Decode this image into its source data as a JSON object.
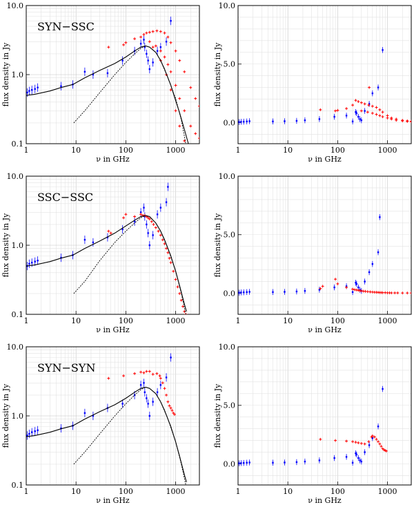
{
  "chart_data": [
    {
      "type": "scatter",
      "title": "SYN−SSC",
      "xlabel": "ν  in GHz",
      "ylabel": "flux density in Jy",
      "xscale": "log",
      "yscale": "log",
      "xlim": [
        1,
        3000
      ],
      "ylim": [
        0.1,
        10
      ],
      "xticks": [
        "1",
        "10",
        "100",
        "1000"
      ],
      "yticks": [
        "0.1",
        "1.0",
        "10.0"
      ],
      "grid": true,
      "series": [
        {
          "role": "observed",
          "color": "#0000ff",
          "x": [
            1.05,
            1.15,
            1.3,
            1.5,
            1.7,
            5,
            8.6,
            15,
            22,
            43,
            86,
            150,
            200,
            230,
            240,
            260,
            280,
            300,
            350,
            430,
            500,
            650,
            800
          ],
          "y": [
            0.55,
            0.58,
            0.6,
            0.62,
            0.65,
            0.68,
            0.72,
            1.1,
            1.0,
            1.05,
            1.6,
            2.2,
            2.8,
            3.2,
            2.5,
            2.0,
            1.6,
            1.2,
            1.5,
            2.2,
            2.5,
            3.0,
            6.0
          ]
        },
        {
          "role": "model",
          "color": "#ff0000",
          "x": [
            45,
            90,
            100,
            150,
            200,
            230,
            260,
            300,
            350,
            420,
            500,
            600,
            700,
            800,
            1000,
            1200,
            1500,
            2000,
            2500,
            3000,
            300,
            400,
            500,
            600,
            700,
            800,
            1000,
            1200,
            1500,
            2000,
            2500,
            3000,
            350,
            500,
            650,
            800,
            1000,
            1200,
            1500
          ],
          "y": [
            2.5,
            2.7,
            2.9,
            3.3,
            3.5,
            3.8,
            4.0,
            4.1,
            4.2,
            4.3,
            4.2,
            4.0,
            3.5,
            2.9,
            2.2,
            1.6,
            1.1,
            0.65,
            0.45,
            0.35,
            3.0,
            2.6,
            2.2,
            1.8,
            1.4,
            1.1,
            0.7,
            0.45,
            0.3,
            0.18,
            0.14,
            0.12,
            2.5,
            1.6,
            1.0,
            0.6,
            0.3,
            0.18,
            0.11
          ]
        },
        {
          "role": "fit-solid",
          "color": "#000000",
          "x": [
            1,
            1.5,
            3,
            5,
            8.6,
            15,
            30,
            60,
            100,
            150,
            200,
            250,
            300,
            400,
            500,
            600,
            800,
            1000,
            1200,
            1500,
            1800
          ],
          "y": [
            0.5,
            0.52,
            0.58,
            0.65,
            0.72,
            0.9,
            1.15,
            1.45,
            1.8,
            2.2,
            2.5,
            2.6,
            2.5,
            2.1,
            1.6,
            1.2,
            0.7,
            0.42,
            0.28,
            0.16,
            0.1
          ]
        },
        {
          "role": "fit-dashed",
          "color": "#000000",
          "x": [
            9,
            15,
            30,
            60,
            100,
            150,
            200,
            250,
            300,
            400,
            500,
            700,
            1000,
            1300,
            1600
          ],
          "y": [
            0.2,
            0.3,
            0.55,
            1.0,
            1.5,
            2.0,
            2.4,
            2.6,
            2.5,
            2.1,
            1.6,
            0.9,
            0.45,
            0.22,
            0.1
          ]
        }
      ]
    },
    {
      "type": "scatter",
      "title": "",
      "xlabel": "ν  in GHz",
      "ylabel": "flux density in Jy",
      "xscale": "log",
      "yscale": "linear",
      "xlim": [
        1,
        3000
      ],
      "ylim": [
        -1.8,
        10
      ],
      "xticks": [
        "1",
        "10",
        "100",
        "1000"
      ],
      "yticks": [
        "0.0",
        "5.0",
        "10.0"
      ],
      "grid": true,
      "series": [
        {
          "role": "observed",
          "color": "#0000ff",
          "x": [
            1.05,
            1.15,
            1.3,
            1.5,
            1.7,
            5,
            8.6,
            15,
            22,
            43,
            86,
            150,
            200,
            230,
            240,
            260,
            280,
            300,
            350,
            430,
            500,
            650,
            800
          ],
          "y": [
            0.05,
            0.07,
            0.08,
            0.1,
            0.12,
            0.1,
            0.12,
            0.15,
            0.2,
            0.3,
            0.5,
            0.6,
            0.1,
            0.9,
            0.8,
            0.5,
            0.3,
            0.2,
            1.0,
            1.6,
            2.5,
            3.0,
            6.2
          ]
        },
        {
          "role": "model",
          "color": "#ff0000",
          "x": [
            45,
            90,
            100,
            150,
            200,
            230,
            260,
            300,
            350,
            420,
            500,
            600,
            700,
            800,
            1000,
            1200,
            1500,
            2000,
            2500,
            3000,
            300,
            400,
            500,
            600,
            700,
            800,
            1000,
            1200,
            1500,
            2000,
            2500,
            3000,
            430
          ],
          "y": [
            1.1,
            1.0,
            1.05,
            1.2,
            1.5,
            1.9,
            1.8,
            1.7,
            1.6,
            1.5,
            1.4,
            1.3,
            1.1,
            0.9,
            0.6,
            0.4,
            0.3,
            0.2,
            0.15,
            0.12,
            1.0,
            0.9,
            0.8,
            0.7,
            0.6,
            0.5,
            0.4,
            0.3,
            0.2,
            0.15,
            0.1,
            0.08,
            3.0
          ]
        }
      ]
    },
    {
      "type": "scatter",
      "title": "SSC−SSC",
      "xlabel": "ν  in GHz",
      "ylabel": "flux density in Jy",
      "xscale": "log",
      "yscale": "log",
      "xlim": [
        1,
        3000
      ],
      "ylim": [
        0.1,
        10
      ],
      "xticks": [
        "1",
        "10",
        "100",
        "1000"
      ],
      "yticks": [
        "0.1",
        "1.0",
        "10.0"
      ],
      "grid": true,
      "series": [
        {
          "role": "observed",
          "color": "#0000ff",
          "x": [
            1.05,
            1.15,
            1.3,
            1.5,
            1.7,
            5,
            8.6,
            15,
            22,
            43,
            86,
            150,
            200,
            230,
            240,
            260,
            280,
            300,
            350,
            430,
            500,
            650,
            700
          ],
          "y": [
            0.5,
            0.54,
            0.56,
            0.58,
            0.6,
            0.66,
            0.72,
            1.2,
            1.1,
            1.3,
            1.7,
            2.2,
            3.0,
            3.5,
            2.6,
            2.0,
            1.5,
            1.0,
            1.4,
            2.8,
            3.5,
            4.2,
            7.0
          ]
        },
        {
          "role": "model",
          "color": "#ff0000",
          "x": [
            45,
            50,
            90,
            100,
            150,
            200,
            220,
            240,
            260,
            280,
            300,
            330,
            360,
            400,
            450,
            500,
            550,
            600,
            650,
            700,
            750,
            800,
            900,
            1000,
            1100,
            1200,
            1300,
            1400,
            1500,
            1600
          ],
          "y": [
            1.6,
            1.5,
            2.5,
            2.8,
            2.6,
            2.8,
            2.7,
            2.7,
            2.6,
            2.5,
            2.4,
            2.2,
            2.0,
            1.8,
            1.6,
            1.4,
            1.2,
            1.05,
            0.9,
            0.78,
            0.65,
            0.56,
            0.42,
            0.32,
            0.25,
            0.2,
            0.16,
            0.13,
            0.11,
            0.1
          ]
        },
        {
          "role": "fit-solid",
          "color": "#000000",
          "x": [
            1,
            1.5,
            3,
            5,
            8.6,
            15,
            30,
            60,
            100,
            150,
            200,
            250,
            300,
            400,
            500,
            600,
            800,
            1000,
            1200,
            1500,
            1650
          ],
          "y": [
            0.5,
            0.52,
            0.58,
            0.65,
            0.72,
            0.9,
            1.15,
            1.5,
            1.9,
            2.3,
            2.6,
            2.7,
            2.6,
            2.1,
            1.6,
            1.2,
            0.7,
            0.42,
            0.26,
            0.14,
            0.11
          ]
        },
        {
          "role": "fit-dashed",
          "color": "#000000",
          "x": [
            9,
            15,
            30,
            60,
            100,
            150,
            200,
            250,
            300,
            400,
            500,
            700,
            1000,
            1300,
            1600
          ],
          "y": [
            0.2,
            0.3,
            0.6,
            1.1,
            1.6,
            2.1,
            2.5,
            2.7,
            2.6,
            2.1,
            1.6,
            0.9,
            0.42,
            0.2,
            0.1
          ]
        }
      ]
    },
    {
      "type": "scatter",
      "title": "",
      "xlabel": "ν  in GHz",
      "ylabel": "flux density in Jy",
      "xscale": "log",
      "yscale": "linear",
      "xlim": [
        1,
        3000
      ],
      "ylim": [
        -1.8,
        10
      ],
      "xticks": [
        "1",
        "10",
        "100",
        "1000"
      ],
      "yticks": [
        "0.0",
        "5.0",
        "10.0"
      ],
      "grid": true,
      "series": [
        {
          "role": "observed",
          "color": "#0000ff",
          "x": [
            1.05,
            1.15,
            1.3,
            1.5,
            1.7,
            5,
            8.6,
            15,
            22,
            43,
            86,
            150,
            200,
            230,
            240,
            260,
            280,
            300,
            350,
            430,
            500,
            650,
            700
          ],
          "y": [
            0.05,
            0.07,
            0.08,
            0.1,
            0.12,
            0.1,
            0.12,
            0.15,
            0.2,
            0.3,
            0.5,
            0.6,
            0.1,
            0.9,
            0.8,
            0.5,
            0.3,
            0.2,
            1.0,
            1.8,
            2.5,
            3.5,
            6.5
          ]
        },
        {
          "role": "model",
          "color": "#ff0000",
          "x": [
            45,
            50,
            90,
            100,
            150,
            200,
            220,
            240,
            260,
            280,
            300,
            330,
            360,
            400,
            450,
            500,
            550,
            600,
            650,
            700,
            750,
            800,
            900,
            1000,
            1100,
            1200,
            1400,
            1600,
            2000,
            2500,
            3000
          ],
          "y": [
            0.4,
            0.6,
            1.2,
            0.8,
            0.5,
            0.35,
            0.3,
            0.28,
            0.25,
            0.22,
            0.2,
            0.18,
            0.16,
            0.14,
            0.12,
            0.1,
            0.09,
            0.08,
            0.07,
            0.06,
            0.06,
            0.05,
            0.05,
            0.04,
            0.04,
            0.03,
            0.03,
            0.03,
            0.02,
            0.02,
            0.02
          ]
        }
      ]
    },
    {
      "type": "scatter",
      "title": "SYN−SYN",
      "xlabel": "ν  in GHz",
      "ylabel": "flux density in Jy",
      "xscale": "log",
      "yscale": "log",
      "xlim": [
        1,
        3000
      ],
      "ylim": [
        0.1,
        10
      ],
      "xticks": [
        "1",
        "10",
        "100",
        "1000"
      ],
      "yticks": [
        "0.1",
        "1.0",
        "10.0"
      ],
      "grid": true,
      "series": [
        {
          "role": "observed",
          "color": "#0000ff",
          "x": [
            1.05,
            1.15,
            1.3,
            1.5,
            1.7,
            5,
            8.6,
            15,
            22,
            43,
            86,
            150,
            200,
            230,
            240,
            260,
            280,
            300,
            350,
            430,
            500,
            650,
            800
          ],
          "y": [
            0.52,
            0.55,
            0.58,
            0.6,
            0.62,
            0.66,
            0.72,
            1.1,
            1.0,
            1.3,
            1.5,
            2.0,
            2.8,
            3.0,
            2.2,
            1.8,
            1.5,
            1.0,
            1.6,
            2.2,
            2.8,
            3.6,
            7.0
          ]
        },
        {
          "role": "model",
          "color": "#ff0000",
          "x": [
            45,
            90,
            150,
            200,
            230,
            260,
            300,
            350,
            420,
            480,
            500,
            550,
            600,
            650,
            700,
            750,
            800,
            850,
            900,
            950
          ],
          "y": [
            3.5,
            3.8,
            4.1,
            4.3,
            4.2,
            4.4,
            4.4,
            4.0,
            4.1,
            3.8,
            3.5,
            3.0,
            2.5,
            2.0,
            1.6,
            1.4,
            1.3,
            1.2,
            1.1,
            1.05
          ]
        },
        {
          "role": "fit-solid",
          "color": "#000000",
          "x": [
            1,
            1.5,
            3,
            5,
            8.6,
            15,
            30,
            60,
            100,
            150,
            200,
            250,
            300,
            400,
            500,
            600,
            800,
            1000,
            1200,
            1500,
            1650
          ],
          "y": [
            0.5,
            0.52,
            0.58,
            0.65,
            0.72,
            0.9,
            1.15,
            1.45,
            1.8,
            2.2,
            2.5,
            2.6,
            2.5,
            2.1,
            1.6,
            1.2,
            0.7,
            0.42,
            0.26,
            0.14,
            0.11
          ]
        },
        {
          "role": "fit-dashed",
          "color": "#000000",
          "x": [
            9,
            15,
            30,
            60,
            100,
            150,
            200,
            250,
            300,
            400,
            500,
            700,
            1000,
            1300,
            1600
          ],
          "y": [
            0.2,
            0.3,
            0.55,
            1.0,
            1.5,
            2.0,
            2.4,
            2.6,
            2.5,
            2.1,
            1.6,
            0.9,
            0.42,
            0.2,
            0.1
          ]
        }
      ]
    },
    {
      "type": "scatter",
      "title": "",
      "xlabel": "ν  in GHz",
      "ylabel": "flux density in Jy",
      "xscale": "log",
      "yscale": "linear",
      "xlim": [
        1,
        3000
      ],
      "ylim": [
        -1.8,
        10
      ],
      "xticks": [
        "1",
        "10",
        "100",
        "1000"
      ],
      "yticks": [
        "0.0",
        "5.0",
        "10.0"
      ],
      "grid": true,
      "series": [
        {
          "role": "observed",
          "color": "#0000ff",
          "x": [
            1.05,
            1.15,
            1.3,
            1.5,
            1.7,
            5,
            8.6,
            15,
            22,
            43,
            86,
            150,
            200,
            230,
            240,
            260,
            280,
            300,
            350,
            430,
            500,
            650,
            800
          ],
          "y": [
            0.05,
            0.07,
            0.08,
            0.1,
            0.12,
            0.1,
            0.12,
            0.15,
            0.2,
            0.3,
            0.5,
            0.6,
            0.1,
            0.9,
            0.8,
            0.5,
            0.3,
            0.2,
            1.0,
            1.6,
            2.2,
            3.2,
            6.4
          ]
        },
        {
          "role": "model",
          "color": "#ff0000",
          "x": [
            45,
            90,
            150,
            200,
            230,
            260,
            300,
            350,
            420,
            480,
            500,
            550,
            600,
            650,
            700,
            750,
            800,
            850,
            900,
            950
          ],
          "y": [
            2.1,
            2.0,
            1.95,
            1.9,
            1.85,
            1.8,
            1.75,
            1.7,
            1.9,
            2.3,
            2.4,
            2.3,
            2.1,
            1.9,
            1.7,
            1.5,
            1.3,
            1.2,
            1.15,
            1.1
          ]
        }
      ]
    }
  ]
}
